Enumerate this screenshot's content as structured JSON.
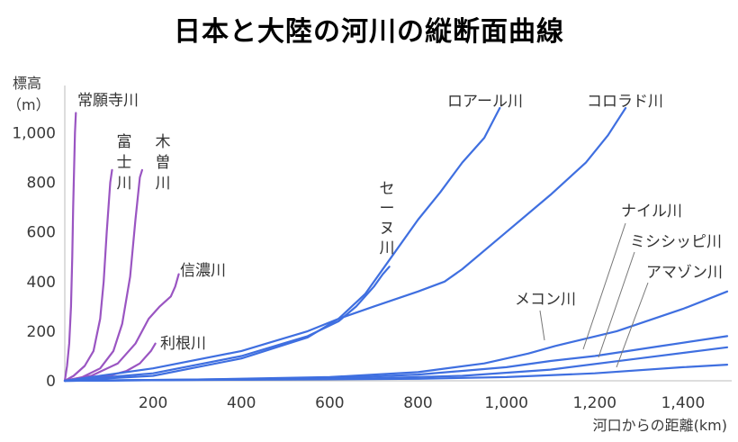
{
  "chart_data": {
    "type": "line",
    "title": "日本と大陸の河川の縦断面曲線",
    "ylabel_line1": "標高",
    "ylabel_line2": "（m）",
    "xlabel": "河口からの距離(km)",
    "xlim": [
      0,
      1500
    ],
    "ylim": [
      0,
      1100
    ],
    "x_ticks": [
      "200",
      "400",
      "600",
      "800",
      "1,000",
      "1,200",
      "1,400"
    ],
    "x_tick_values": [
      200,
      400,
      600,
      800,
      1000,
      1200,
      1400
    ],
    "y_ticks": [
      "0",
      "200",
      "400",
      "600",
      "800",
      "1,000"
    ],
    "y_tick_values": [
      0,
      200,
      400,
      600,
      800,
      1000
    ],
    "grid": false,
    "colors": {
      "japan": "#9a55c2",
      "continent": "#3f6fe0",
      "leader": "#777777"
    },
    "series": [
      {
        "name": "常願寺川",
        "group": "japan",
        "label_text": "常願寺川",
        "points": [
          [
            0,
            0
          ],
          [
            5,
            60
          ],
          [
            10,
            150
          ],
          [
            14,
            300
          ],
          [
            17,
            500
          ],
          [
            19,
            700
          ],
          [
            21,
            850
          ],
          [
            23,
            1000
          ],
          [
            25,
            1080
          ]
        ]
      },
      {
        "name": "富士川",
        "group": "japan",
        "label_lines": [
          "富",
          "士",
          "川"
        ],
        "points": [
          [
            0,
            0
          ],
          [
            20,
            20
          ],
          [
            45,
            60
          ],
          [
            65,
            120
          ],
          [
            80,
            250
          ],
          [
            88,
            400
          ],
          [
            95,
            600
          ],
          [
            103,
            800
          ],
          [
            107,
            850
          ]
        ]
      },
      {
        "name": "木曽川",
        "group": "japan",
        "label_lines": [
          "木",
          "曽",
          "川"
        ],
        "points": [
          [
            0,
            0
          ],
          [
            40,
            15
          ],
          [
            80,
            50
          ],
          [
            110,
            120
          ],
          [
            130,
            230
          ],
          [
            148,
            420
          ],
          [
            160,
            650
          ],
          [
            170,
            820
          ],
          [
            175,
            850
          ]
        ]
      },
      {
        "name": "信濃川",
        "group": "japan",
        "label_text": "信濃川",
        "points": [
          [
            0,
            0
          ],
          [
            60,
            20
          ],
          [
            120,
            70
          ],
          [
            160,
            150
          ],
          [
            190,
            250
          ],
          [
            215,
            300
          ],
          [
            240,
            340
          ],
          [
            250,
            380
          ],
          [
            258,
            430
          ]
        ]
      },
      {
        "name": "利根川",
        "group": "japan",
        "label_text": "利根川",
        "points": [
          [
            0,
            0
          ],
          [
            60,
            10
          ],
          [
            100,
            20
          ],
          [
            140,
            40
          ],
          [
            170,
            70
          ],
          [
            195,
            120
          ],
          [
            205,
            150
          ]
        ]
      },
      {
        "name": "セーヌ川",
        "group": "continent",
        "label_lines": [
          "セ",
          "ー",
          "ヌ",
          "川"
        ],
        "points": [
          [
            0,
            0
          ],
          [
            200,
            30
          ],
          [
            400,
            100
          ],
          [
            550,
            180
          ],
          [
            620,
            240
          ],
          [
            660,
            300
          ],
          [
            700,
            380
          ],
          [
            720,
            430
          ],
          [
            735,
            460
          ]
        ]
      },
      {
        "name": "ロアール川",
        "group": "continent",
        "label_text": "ロアール川",
        "points": [
          [
            0,
            0
          ],
          [
            200,
            50
          ],
          [
            400,
            120
          ],
          [
            550,
            200
          ],
          [
            620,
            250
          ],
          [
            680,
            350
          ],
          [
            740,
            500
          ],
          [
            800,
            650
          ],
          [
            850,
            760
          ],
          [
            900,
            880
          ],
          [
            950,
            980
          ],
          [
            985,
            1100
          ]
        ]
      },
      {
        "name": "コロラド川",
        "group": "continent",
        "label_text": "コロラド川",
        "points": [
          [
            0,
            0
          ],
          [
            200,
            20
          ],
          [
            400,
            90
          ],
          [
            550,
            175
          ],
          [
            620,
            250
          ],
          [
            700,
            300
          ],
          [
            800,
            360
          ],
          [
            860,
            400
          ],
          [
            900,
            450
          ],
          [
            1000,
            600
          ],
          [
            1100,
            750
          ],
          [
            1180,
            880
          ],
          [
            1230,
            990
          ],
          [
            1270,
            1100
          ]
        ]
      },
      {
        "name": "メコン川",
        "group": "continent",
        "label_text": "メコン川",
        "points": [
          [
            0,
            0
          ],
          [
            300,
            5
          ],
          [
            600,
            15
          ],
          [
            800,
            35
          ],
          [
            950,
            70
          ],
          [
            1050,
            110
          ],
          [
            1110,
            140
          ],
          [
            1250,
            200
          ],
          [
            1400,
            290
          ],
          [
            1500,
            360
          ]
        ]
      },
      {
        "name": "ナイル川",
        "group": "continent",
        "label_text": "ナイル川",
        "points": [
          [
            0,
            0
          ],
          [
            300,
            5
          ],
          [
            600,
            10
          ],
          [
            800,
            25
          ],
          [
            1000,
            55
          ],
          [
            1100,
            80
          ],
          [
            1200,
            100
          ],
          [
            1350,
            140
          ],
          [
            1500,
            180
          ]
        ]
      },
      {
        "name": "ミシシッピ川",
        "group": "continent",
        "label_text": "ミシシッピ川",
        "points": [
          [
            0,
            0
          ],
          [
            400,
            5
          ],
          [
            700,
            10
          ],
          [
            900,
            20
          ],
          [
            1100,
            45
          ],
          [
            1300,
            90
          ],
          [
            1500,
            135
          ]
        ]
      },
      {
        "name": "アマゾン川",
        "group": "continent",
        "label_text": "アマゾン川",
        "points": [
          [
            0,
            0
          ],
          [
            500,
            5
          ],
          [
            800,
            8
          ],
          [
            1000,
            15
          ],
          [
            1200,
            30
          ],
          [
            1400,
            55
          ],
          [
            1500,
            65
          ]
        ]
      }
    ]
  }
}
